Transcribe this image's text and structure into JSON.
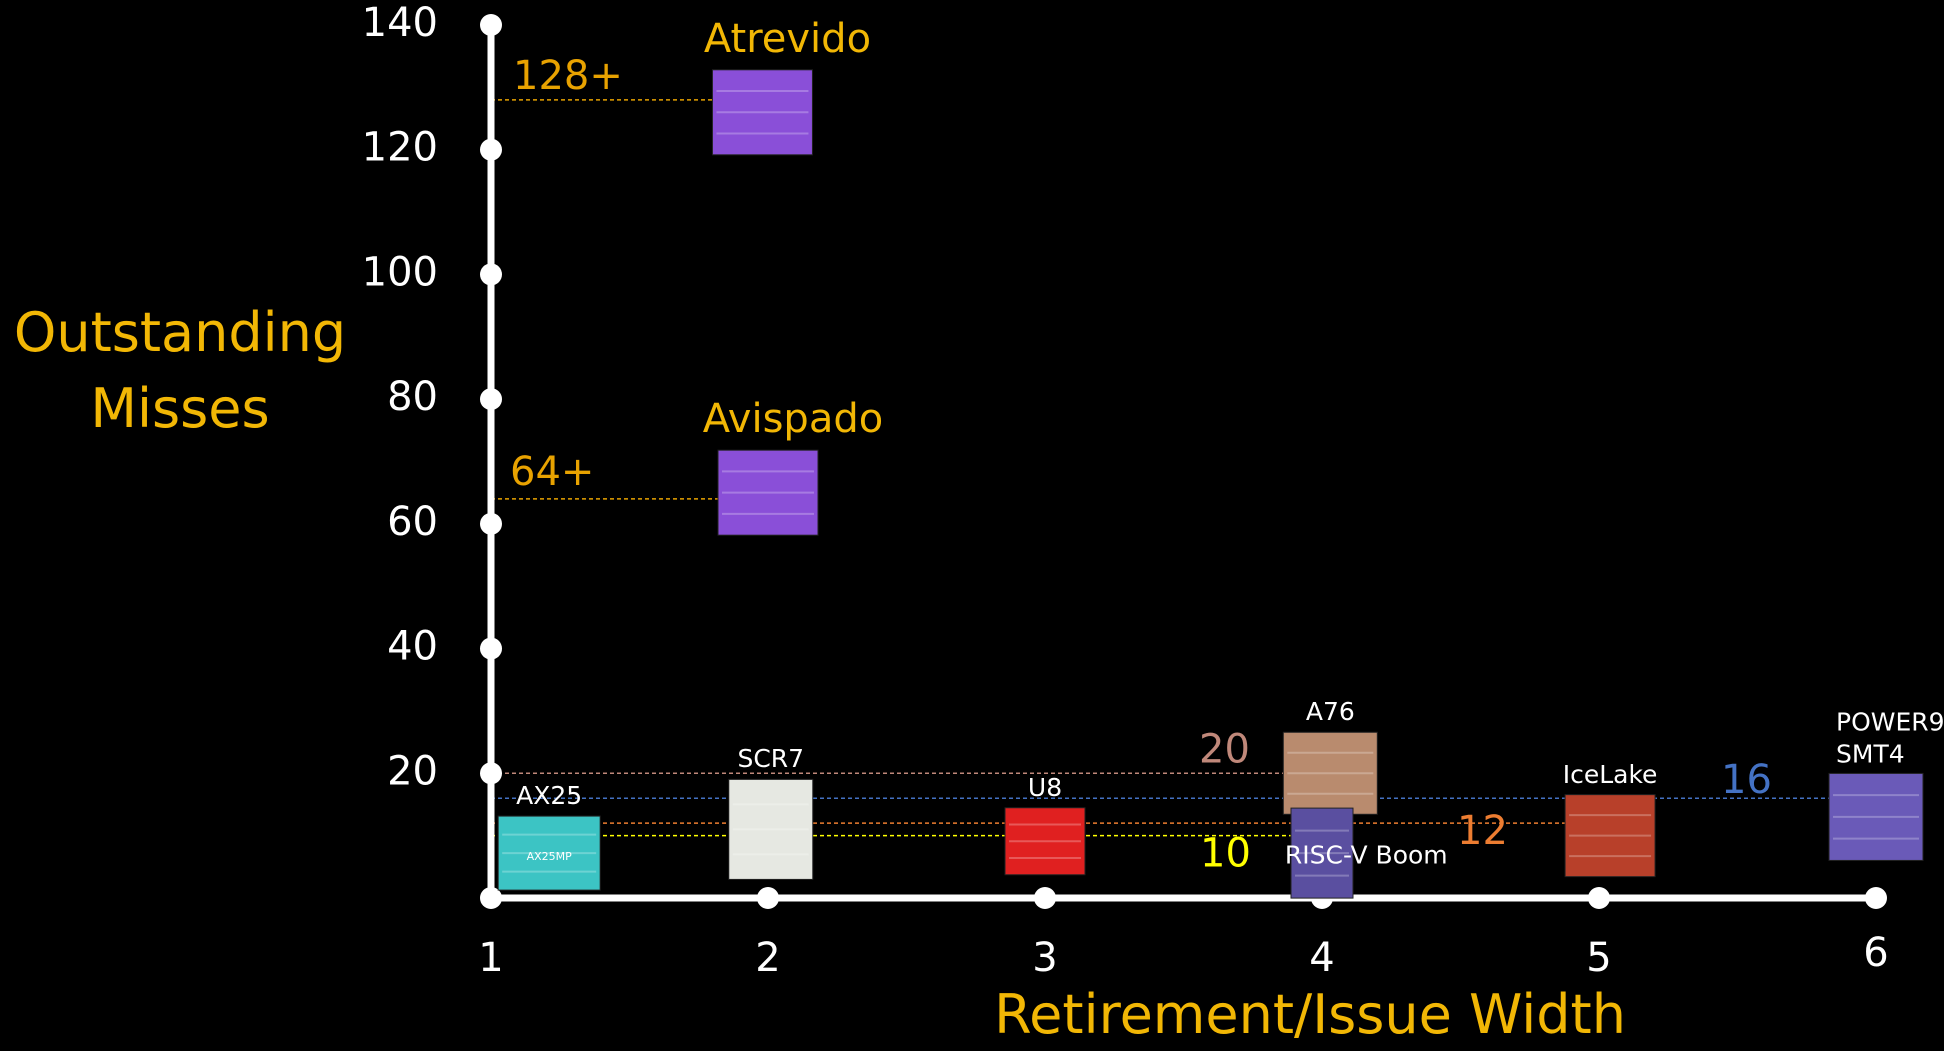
{
  "chart_data": {
    "type": "chip-scatter",
    "y_label": "Outstanding Misses",
    "x_label": "Retirement/Issue Width",
    "axis_color": "#ffffff",
    "title_color": "#f2b705",
    "xlim": [
      1,
      6
    ],
    "xticks": [
      1,
      2,
      3,
      4,
      5,
      6
    ],
    "ylim": [
      0,
      140
    ],
    "yticks": [
      20,
      40,
      60,
      80,
      100,
      120,
      140
    ],
    "reference_lines": [
      {
        "value": 128,
        "label": "128+",
        "color": "#e8a200"
      },
      {
        "value": 64,
        "label": "64+",
        "color": "#e8a200"
      },
      {
        "value": 20,
        "label": "20",
        "color": "#c0887a"
      },
      {
        "value": 16,
        "label": "16",
        "color": "#4472c4"
      },
      {
        "value": 12,
        "label": "12",
        "color": "#ed7d31"
      },
      {
        "value": 10,
        "label": "10",
        "color": "#ffff00"
      }
    ],
    "chips": [
      {
        "name": "Atrevido",
        "x": 1.98,
        "y": 126,
        "color": "#8a4fd8"
      },
      {
        "name": "Avispado",
        "x": 2.0,
        "y": 65,
        "color": "#8a4fd8"
      },
      {
        "name": "AX25",
        "x": 1.21,
        "y": 7.2,
        "color": "#3cc4c4",
        "inner_text": "AX25MP"
      },
      {
        "name": "SCR7",
        "x": 2.01,
        "y": 11,
        "color": "#e6e8e2"
      },
      {
        "name": "U8",
        "x": 3.0,
        "y": 9.1,
        "color": "#e02020"
      },
      {
        "name": "A76",
        "x": 4.03,
        "y": 20,
        "color": "#b98b6e"
      },
      {
        "name": "RISC-V Boom",
        "x": 4.0,
        "y": 7.2,
        "color": "#5a4fa0"
      },
      {
        "name": "IceLake",
        "x": 5.04,
        "y": 10,
        "color": "#b8402a"
      },
      {
        "name": "POWER9 SMT4",
        "x": 6.0,
        "y": 13,
        "color": "#6a5ab8"
      }
    ]
  }
}
